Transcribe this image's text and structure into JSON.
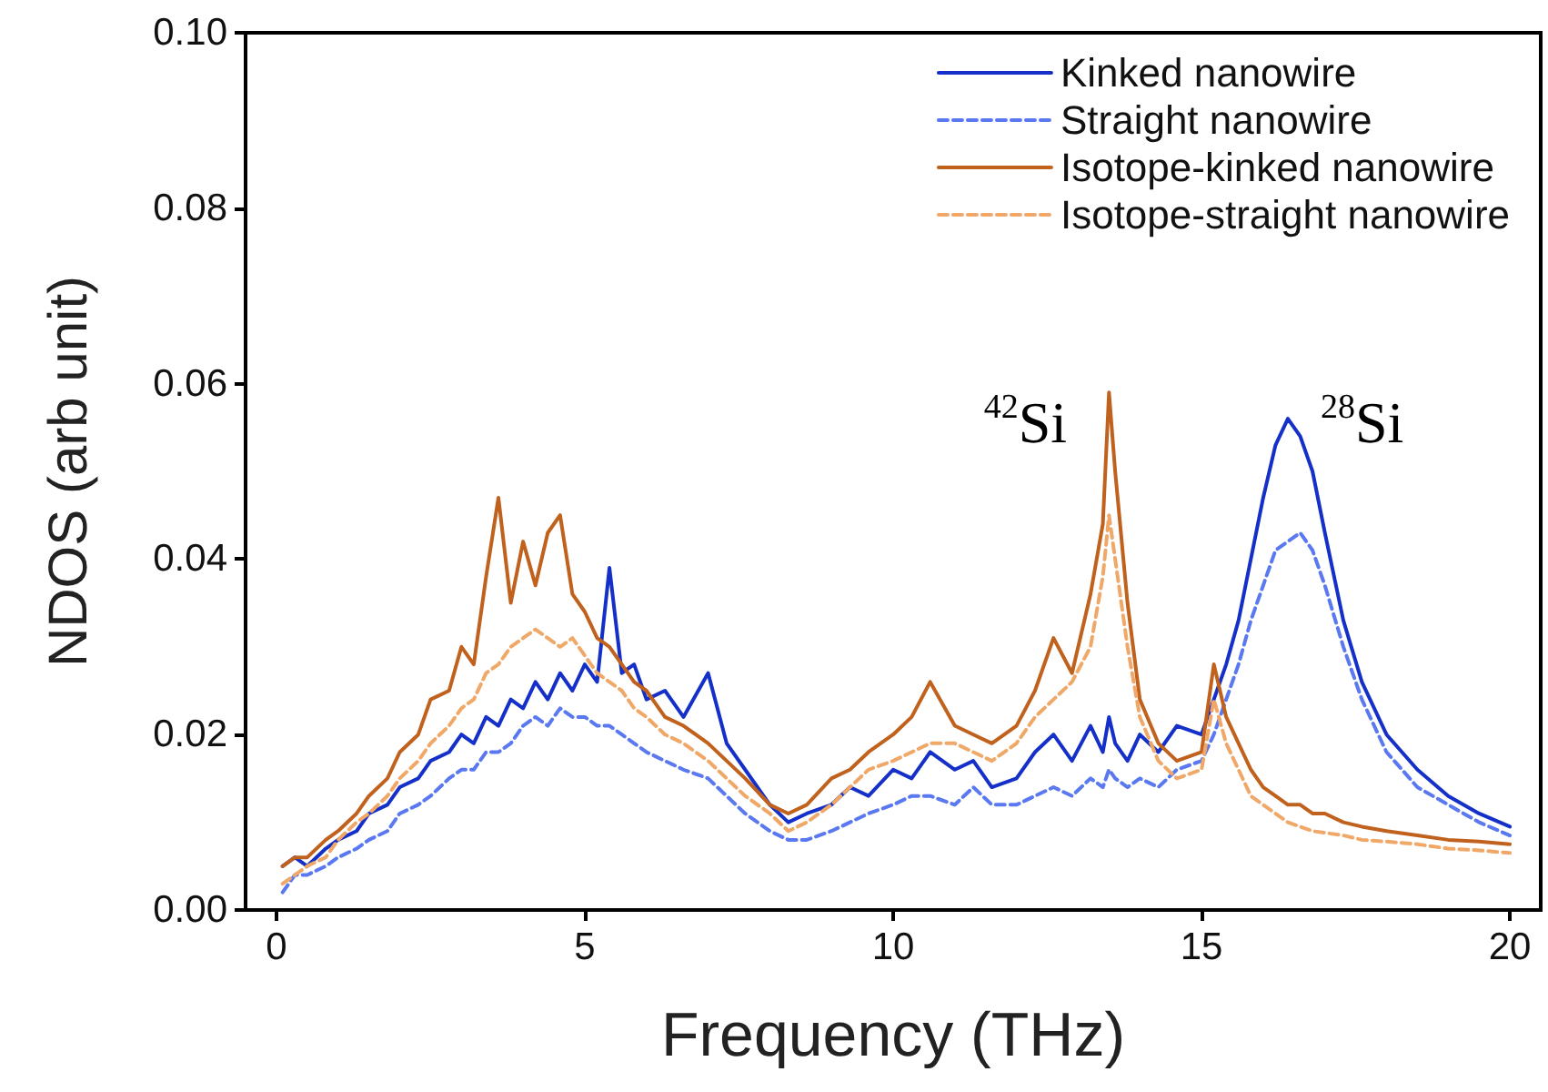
{
  "chart_data": {
    "type": "line",
    "xlabel": "Frequency (THz)",
    "ylabel": "NDOS (arb unit)",
    "x": [
      0.1,
      0.3,
      0.5,
      0.8,
      1,
      1.3,
      1.5,
      1.8,
      2,
      2.3,
      2.5,
      2.8,
      3,
      3.2,
      3.4,
      3.6,
      3.8,
      4,
      4.2,
      4.4,
      4.6,
      4.8,
      5,
      5.2,
      5.4,
      5.6,
      5.8,
      6,
      6.3,
      6.6,
      7,
      7.3,
      7.6,
      8,
      8.3,
      8.6,
      9,
      9.3,
      9.6,
      10,
      10.3,
      10.6,
      11,
      11.3,
      11.6,
      12,
      12.3,
      12.6,
      12.9,
      13.2,
      13.4,
      13.5,
      13.6,
      13.8,
      14,
      14.3,
      14.6,
      15,
      15.2,
      15.4,
      15.6,
      15.8,
      16,
      16.2,
      16.4,
      16.6,
      16.8,
      17,
      17.3,
      17.6,
      18,
      18.5,
      19,
      19.5,
      20
    ],
    "series": [
      {
        "name": "Kinked nanowire",
        "color": "#1530c8",
        "line_style": "solid",
        "values": [
          0.005,
          0.006,
          0.005,
          0.007,
          0.008,
          0.009,
          0.011,
          0.012,
          0.014,
          0.015,
          0.017,
          0.018,
          0.02,
          0.019,
          0.022,
          0.021,
          0.024,
          0.023,
          0.026,
          0.024,
          0.027,
          0.025,
          0.028,
          0.026,
          0.039,
          0.027,
          0.028,
          0.024,
          0.025,
          0.022,
          0.027,
          0.019,
          0.016,
          0.012,
          0.01,
          0.011,
          0.012,
          0.014,
          0.013,
          0.016,
          0.015,
          0.018,
          0.016,
          0.017,
          0.014,
          0.015,
          0.018,
          0.02,
          0.017,
          0.021,
          0.018,
          0.022,
          0.019,
          0.017,
          0.02,
          0.018,
          0.021,
          0.02,
          0.024,
          0.028,
          0.033,
          0.04,
          0.047,
          0.053,
          0.056,
          0.054,
          0.05,
          0.043,
          0.033,
          0.026,
          0.02,
          0.016,
          0.013,
          0.011,
          0.0095
        ]
      },
      {
        "name": "Straight nanowire",
        "color": "#5a78f0",
        "line_style": "dashed",
        "values": [
          0.002,
          0.004,
          0.004,
          0.005,
          0.006,
          0.007,
          0.008,
          0.009,
          0.011,
          0.012,
          0.013,
          0.015,
          0.016,
          0.016,
          0.018,
          0.018,
          0.019,
          0.021,
          0.022,
          0.021,
          0.023,
          0.022,
          0.022,
          0.021,
          0.021,
          0.02,
          0.019,
          0.018,
          0.017,
          0.016,
          0.015,
          0.013,
          0.011,
          0.009,
          0.008,
          0.008,
          0.009,
          0.01,
          0.011,
          0.012,
          0.013,
          0.013,
          0.012,
          0.014,
          0.012,
          0.012,
          0.013,
          0.014,
          0.013,
          0.015,
          0.014,
          0.016,
          0.015,
          0.014,
          0.015,
          0.014,
          0.016,
          0.017,
          0.02,
          0.024,
          0.028,
          0.033,
          0.037,
          0.041,
          0.042,
          0.043,
          0.041,
          0.037,
          0.03,
          0.024,
          0.018,
          0.014,
          0.012,
          0.01,
          0.0085
        ]
      },
      {
        "name": "Isotope-kinked nanowire",
        "color": "#c0621e",
        "line_style": "solid",
        "values": [
          0.005,
          0.006,
          0.006,
          0.008,
          0.009,
          0.011,
          0.013,
          0.015,
          0.018,
          0.02,
          0.024,
          0.025,
          0.03,
          0.028,
          0.038,
          0.047,
          0.035,
          0.042,
          0.037,
          0.043,
          0.045,
          0.036,
          0.034,
          0.031,
          0.03,
          0.028,
          0.026,
          0.025,
          0.022,
          0.021,
          0.019,
          0.017,
          0.015,
          0.012,
          0.011,
          0.012,
          0.015,
          0.016,
          0.018,
          0.02,
          0.022,
          0.026,
          0.021,
          0.02,
          0.019,
          0.021,
          0.025,
          0.031,
          0.027,
          0.036,
          0.044,
          0.059,
          0.05,
          0.035,
          0.024,
          0.019,
          0.017,
          0.018,
          0.028,
          0.022,
          0.019,
          0.016,
          0.014,
          0.013,
          0.012,
          0.012,
          0.011,
          0.011,
          0.01,
          0.0095,
          0.009,
          0.0085,
          0.008,
          0.0078,
          0.0075
        ]
      },
      {
        "name": "Isotope-straight nanowire",
        "color": "#f0a868",
        "line_style": "dashed",
        "values": [
          0.003,
          0.004,
          0.005,
          0.006,
          0.008,
          0.01,
          0.011,
          0.013,
          0.015,
          0.017,
          0.019,
          0.021,
          0.023,
          0.024,
          0.027,
          0.028,
          0.03,
          0.031,
          0.032,
          0.031,
          0.03,
          0.031,
          0.029,
          0.027,
          0.026,
          0.025,
          0.023,
          0.022,
          0.02,
          0.019,
          0.017,
          0.015,
          0.013,
          0.011,
          0.009,
          0.01,
          0.012,
          0.014,
          0.016,
          0.017,
          0.018,
          0.019,
          0.019,
          0.018,
          0.017,
          0.019,
          0.022,
          0.024,
          0.026,
          0.03,
          0.038,
          0.045,
          0.04,
          0.03,
          0.022,
          0.017,
          0.015,
          0.016,
          0.024,
          0.019,
          0.016,
          0.013,
          0.012,
          0.011,
          0.01,
          0.0095,
          0.009,
          0.0088,
          0.0085,
          0.008,
          0.0078,
          0.0075,
          0.007,
          0.0068,
          0.0065
        ]
      }
    ],
    "xlim": [
      -0.5,
      20.5
    ],
    "xticks": [
      0,
      5,
      10,
      15,
      20
    ],
    "ylim": [
      0,
      0.1
    ],
    "yticks": [
      {
        "value": 0,
        "label": "0.00"
      },
      {
        "value": 0.02,
        "label": "0.02"
      },
      {
        "value": 0.04,
        "label": "0.04"
      },
      {
        "value": 0.06,
        "label": "0.06"
      },
      {
        "value": 0.08,
        "label": "0.08"
      },
      {
        "value": 0.1,
        "label": "0.10"
      }
    ],
    "annotations": [
      "$^{42}$Si",
      "$^{28}$Si"
    ],
    "grid": false,
    "legend": "top right",
    "marker": "none"
  }
}
